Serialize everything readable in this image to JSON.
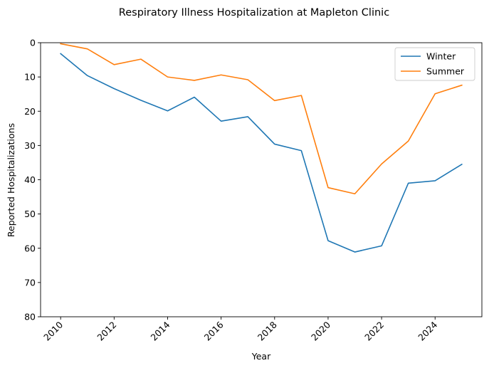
{
  "chart_data": {
    "type": "line",
    "title": "Respiratory Illness Hospitalization at Mapleton Clinic",
    "xlabel": "Year",
    "ylabel": "Reported Hospitalizations",
    "x": [
      2010,
      2011,
      2012,
      2013,
      2014,
      2015,
      2016,
      2017,
      2018,
      2019,
      2020,
      2021,
      2022,
      2023,
      2024,
      2025
    ],
    "xlim": [
      2009.25,
      2025.75
    ],
    "ylim": [
      80,
      0
    ],
    "y_inverted": true,
    "xticks": [
      2010,
      2012,
      2014,
      2016,
      2018,
      2020,
      2022,
      2024
    ],
    "yticks": [
      0,
      10,
      20,
      30,
      40,
      50,
      60,
      70,
      80
    ],
    "xtick_rotation": 45,
    "grid": false,
    "legend_position": "upper right",
    "series": [
      {
        "name": "Winter",
        "color": "#1f77b4",
        "values": [
          3.2,
          9.6,
          13.4,
          16.8,
          19.9,
          15.9,
          22.9,
          21.6,
          29.6,
          31.5,
          57.8,
          61.1,
          59.3,
          41.0,
          40.3,
          35.5
        ]
      },
      {
        "name": "Summer",
        "color": "#ff7f0e",
        "values": [
          0.3,
          1.8,
          6.4,
          4.8,
          10.0,
          11.0,
          9.4,
          10.8,
          16.9,
          15.4,
          42.3,
          44.1,
          35.4,
          28.7,
          14.9,
          12.4
        ]
      }
    ]
  }
}
